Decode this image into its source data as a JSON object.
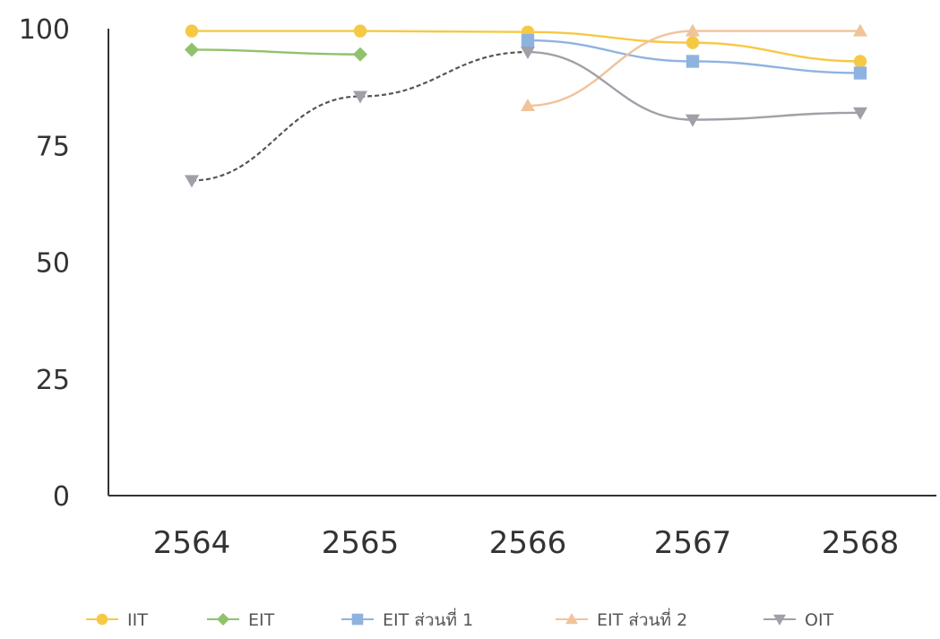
{
  "chart_data": {
    "type": "line",
    "x": [
      "2564",
      "2565",
      "2566",
      "2567",
      "2568"
    ],
    "ylim": [
      0,
      100
    ],
    "yticks": [
      0,
      25,
      50,
      75,
      100
    ],
    "grid": false,
    "legend_position": "bottom",
    "series": [
      {
        "name": "IIT",
        "color": "#f6c945",
        "marker": "circle",
        "line_style": "solid",
        "values": [
          99.5,
          99.5,
          99.3,
          97,
          93
        ]
      },
      {
        "name": "EIT",
        "color": "#8fc26a",
        "marker": "diamond",
        "line_style": "solid",
        "values": [
          95.5,
          94.5,
          null,
          null,
          null
        ]
      },
      {
        "name": "EIT ส่วนที่ 1",
        "color": "#8fb3e0",
        "marker": "square",
        "line_style": "solid",
        "values": [
          null,
          null,
          97.5,
          93,
          90.5
        ]
      },
      {
        "name": "EIT ส่วนที่ 2",
        "color": "#f0c39a",
        "marker": "triangle-up",
        "line_style": "solid",
        "values": [
          null,
          null,
          83.5,
          99.5,
          99.5
        ]
      },
      {
        "name": "OIT",
        "color": "#a0a0a8",
        "marker": "triangle-down",
        "line_style": "mixed",
        "values": [
          67.5,
          85.5,
          95,
          80.5,
          82
        ]
      }
    ]
  }
}
